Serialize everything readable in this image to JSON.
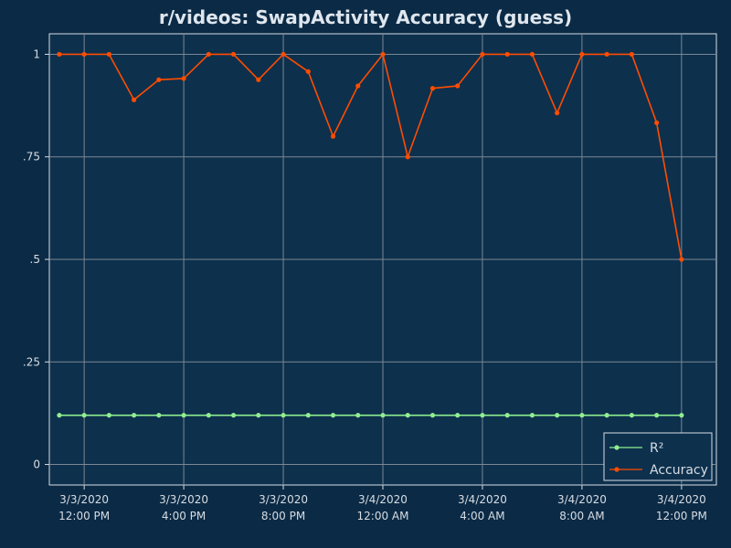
{
  "chart_data": {
    "type": "line",
    "title": "r/videos: SwapActivity Accuracy (guess)",
    "xlabel": "",
    "ylabel": "",
    "ylim": [
      -0.05,
      1.05
    ],
    "yticks": [
      {
        "value": 0,
        "label": "0"
      },
      {
        "value": 0.25,
        "label": ".25"
      },
      {
        "value": 0.5,
        "label": ".5"
      },
      {
        "value": 0.75,
        "label": ".75"
      },
      {
        "value": 1,
        "label": "1"
      }
    ],
    "xticks": [
      {
        "value": 1,
        "line1": "3/3/2020",
        "line2": "12:00 PM"
      },
      {
        "value": 5,
        "line1": "3/3/2020",
        "line2": "4:00 PM"
      },
      {
        "value": 9,
        "line1": "3/3/2020",
        "line2": "8:00 PM"
      },
      {
        "value": 13,
        "line1": "3/4/2020",
        "line2": "12:00 AM"
      },
      {
        "value": 17,
        "line1": "3/4/2020",
        "line2": "4:00 AM"
      },
      {
        "value": 21,
        "line1": "3/4/2020",
        "line2": "8:00 AM"
      },
      {
        "value": 25,
        "line1": "3/4/2020",
        "line2": "12:00 PM"
      }
    ],
    "xlim": [
      -0.4,
      26.4
    ],
    "grid": true,
    "legend_position": "bottom-right",
    "series": [
      {
        "name": "R²",
        "color": "#90ee90",
        "values": [
          0.12,
          0.12,
          0.12,
          0.12,
          0.12,
          0.12,
          0.12,
          0.12,
          0.12,
          0.12,
          0.12,
          0.12,
          0.12,
          0.12,
          0.12,
          0.12,
          0.12,
          0.12,
          0.12,
          0.12,
          0.12,
          0.12,
          0.12,
          0.12,
          0.12,
          0.12
        ]
      },
      {
        "name": "Accuracy",
        "color": "#ff4c00",
        "values": [
          1,
          1,
          1,
          0.889,
          0.938,
          0.941,
          1,
          1,
          0.938,
          1,
          0.958,
          0.8,
          0.923,
          1,
          0.75,
          0.917,
          0.923,
          1,
          1,
          1,
          0.857,
          1,
          1,
          1,
          0.833,
          0.5
        ]
      }
    ]
  }
}
